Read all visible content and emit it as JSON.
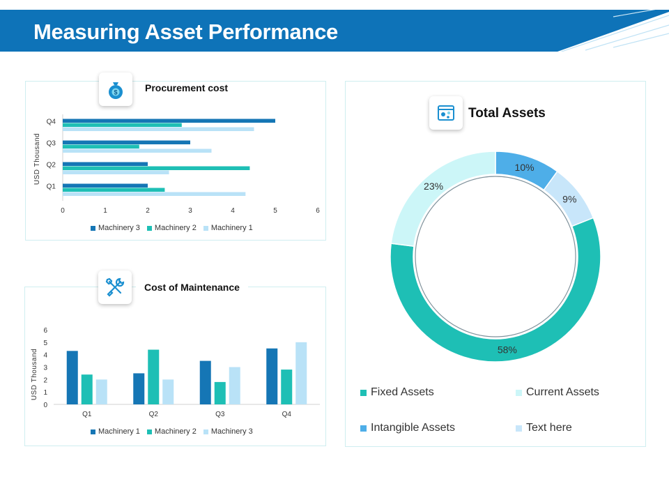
{
  "page": {
    "title": "Measuring Asset Performance"
  },
  "colors": {
    "dark_blue": "#1576b5",
    "teal": "#1ebfb5",
    "light_blue": "#b9e2f7",
    "pale_cyan": "#ccf6f8",
    "sky_blue": "#4eaee8",
    "pale_blue": "#c8e6fa",
    "header_blue": "#0e73b8"
  },
  "chart_data": [
    {
      "type": "bar",
      "orientation": "horizontal",
      "title": "Procurement cost",
      "icon": "money-bag-icon",
      "ylabel": "USD Thousand",
      "categories": [
        "Q1",
        "Q2",
        "Q3",
        "Q4"
      ],
      "xlim": [
        0,
        6
      ],
      "xticks": [
        "0",
        "1",
        "2",
        "3",
        "4",
        "5",
        "6"
      ],
      "series": [
        {
          "name": "Machinery 3",
          "color": "#1576b5",
          "values": [
            2,
            2,
            3,
            5
          ]
        },
        {
          "name": "Machinery 2",
          "color": "#1ebfb5",
          "values": [
            2.4,
            4.4,
            1.8,
            2.8
          ]
        },
        {
          "name": "Machinery 1",
          "color": "#b9e2f7",
          "values": [
            4.3,
            2.5,
            3.5,
            4.5
          ]
        }
      ]
    },
    {
      "type": "bar",
      "orientation": "vertical",
      "title": "Cost of Maintenance",
      "icon": "tools-icon",
      "ylabel": "USD Thousand",
      "categories": [
        "Q1",
        "Q2",
        "Q3",
        "Q4"
      ],
      "ylim": [
        0,
        6
      ],
      "yticks": [
        "0",
        "1",
        "2",
        "3",
        "4",
        "5",
        "6"
      ],
      "series": [
        {
          "name": "Machinery 1",
          "color": "#1576b5",
          "values": [
            4.3,
            2.5,
            3.5,
            4.5
          ]
        },
        {
          "name": "Machinery 2",
          "color": "#1ebfb5",
          "values": [
            2.4,
            4.4,
            1.8,
            2.8
          ]
        },
        {
          "name": "Machinery 3",
          "color": "#b9e2f7",
          "values": [
            2,
            2,
            3,
            5
          ]
        }
      ]
    },
    {
      "type": "pie",
      "variant": "donut",
      "title": "Total Assets",
      "icon": "assets-dashboard-icon",
      "slices": [
        {
          "name": "Fixed Assets",
          "value": 58,
          "label": "58%",
          "color": "#1ebfb5"
        },
        {
          "name": "Current Assets",
          "value": 23,
          "label": "23%",
          "color": "#ccf6f8"
        },
        {
          "name": "Intangible Assets",
          "value": 10,
          "label": "10%",
          "color": "#4eaee8"
        },
        {
          "name": "Text here",
          "value": 9,
          "label": "9%",
          "color": "#c8e6fa"
        }
      ]
    }
  ]
}
